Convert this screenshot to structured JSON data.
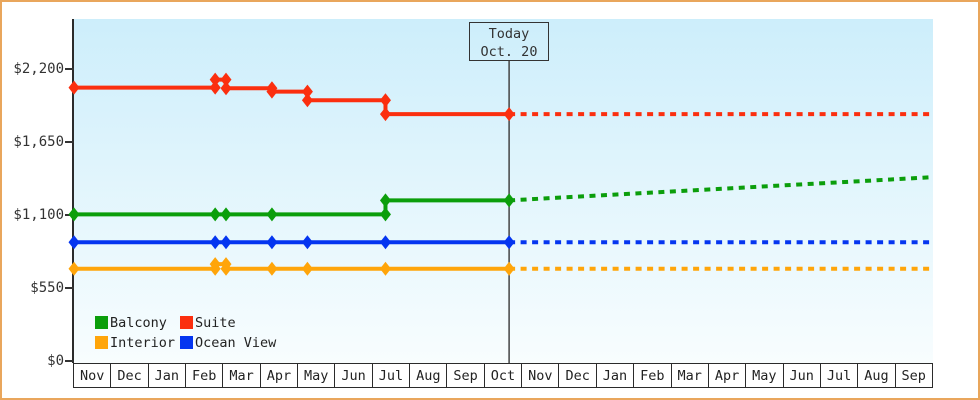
{
  "chart_data": {
    "type": "line",
    "description": "Cabin price history with dotted forecast after today",
    "currency": "USD",
    "y_axis": {
      "ticks": [
        {
          "value": 0,
          "label": "$0"
        },
        {
          "value": 550,
          "label": "$550"
        },
        {
          "value": 1100,
          "label": "$1,100"
        },
        {
          "value": 1650,
          "label": "$1,650"
        },
        {
          "value": 2200,
          "label": "$2,200"
        }
      ],
      "range": [
        0,
        2200
      ],
      "grid": false
    },
    "x_months": [
      "Nov",
      "Dec",
      "Jan",
      "Feb",
      "Mar",
      "Apr",
      "May",
      "Jun",
      "Jul",
      "Aug",
      "Sep",
      "Oct",
      "Nov",
      "Dec",
      "Jan",
      "Feb",
      "Mar",
      "Apr",
      "May",
      "Jun",
      "Jul",
      "Aug",
      "Sep"
    ],
    "today": {
      "line1": "Today",
      "line2": "Oct. 20",
      "month_offset": 11.65
    },
    "series": [
      {
        "name": "Suite",
        "color": "#fb2f0f",
        "history": [
          {
            "m": 0,
            "v": 2060
          },
          {
            "m": 3.78,
            "v": 2060
          },
          {
            "m": 3.78,
            "v": 2120
          },
          {
            "m": 4.07,
            "v": 2120
          },
          {
            "m": 4.07,
            "v": 2055
          },
          {
            "m": 5.3,
            "v": 2055
          },
          {
            "m": 5.3,
            "v": 2030
          },
          {
            "m": 6.25,
            "v": 2030
          },
          {
            "m": 6.25,
            "v": 1965
          },
          {
            "m": 8.34,
            "v": 1965
          },
          {
            "m": 8.34,
            "v": 1860
          },
          {
            "m": 11.65,
            "v": 1860
          }
        ],
        "forecast": [
          {
            "m": 11.65,
            "v": 1860
          },
          {
            "m": 23,
            "v": 1860
          }
        ]
      },
      {
        "name": "Balcony",
        "color": "#0b9e0b",
        "history": [
          {
            "m": 0,
            "v": 1105
          },
          {
            "m": 3.78,
            "v": 1105
          },
          {
            "m": 4.07,
            "v": 1105
          },
          {
            "m": 5.3,
            "v": 1105
          },
          {
            "m": 8.34,
            "v": 1105
          },
          {
            "m": 8.34,
            "v": 1210
          },
          {
            "m": 11.65,
            "v": 1210
          }
        ],
        "forecast": [
          {
            "m": 11.65,
            "v": 1210
          },
          {
            "m": 23,
            "v": 1385
          }
        ]
      },
      {
        "name": "Ocean View",
        "color": "#0435f0",
        "history": [
          {
            "m": 0,
            "v": 895
          },
          {
            "m": 3.78,
            "v": 895
          },
          {
            "m": 4.07,
            "v": 895
          },
          {
            "m": 5.3,
            "v": 895
          },
          {
            "m": 6.25,
            "v": 895
          },
          {
            "m": 8.34,
            "v": 895
          },
          {
            "m": 11.65,
            "v": 895
          }
        ],
        "forecast": [
          {
            "m": 11.65,
            "v": 895
          },
          {
            "m": 23,
            "v": 895
          }
        ]
      },
      {
        "name": "Interior",
        "color": "#ffa50a",
        "history": [
          {
            "m": 0,
            "v": 695
          },
          {
            "m": 3.78,
            "v": 695
          },
          {
            "m": 3.78,
            "v": 730
          },
          {
            "m": 4.07,
            "v": 730
          },
          {
            "m": 4.07,
            "v": 695
          },
          {
            "m": 5.3,
            "v": 695
          },
          {
            "m": 6.25,
            "v": 695
          },
          {
            "m": 8.34,
            "v": 695
          },
          {
            "m": 11.65,
            "v": 695
          }
        ],
        "forecast": [
          {
            "m": 11.65,
            "v": 695
          },
          {
            "m": 23,
            "v": 695
          }
        ]
      }
    ],
    "legend": [
      {
        "label": "Balcony",
        "color": "#0b9e0b"
      },
      {
        "label": "Suite",
        "color": "#fb2f0f"
      },
      {
        "label": "Interior",
        "color": "#ffa50a"
      },
      {
        "label": "Ocean View",
        "color": "#0435f0"
      }
    ],
    "legend_position": "bottom-left-inside",
    "plot_background": {
      "top": "#cdeefb",
      "bottom": "#f8fdfe"
    },
    "frame_border_color": "#e9a65c"
  }
}
